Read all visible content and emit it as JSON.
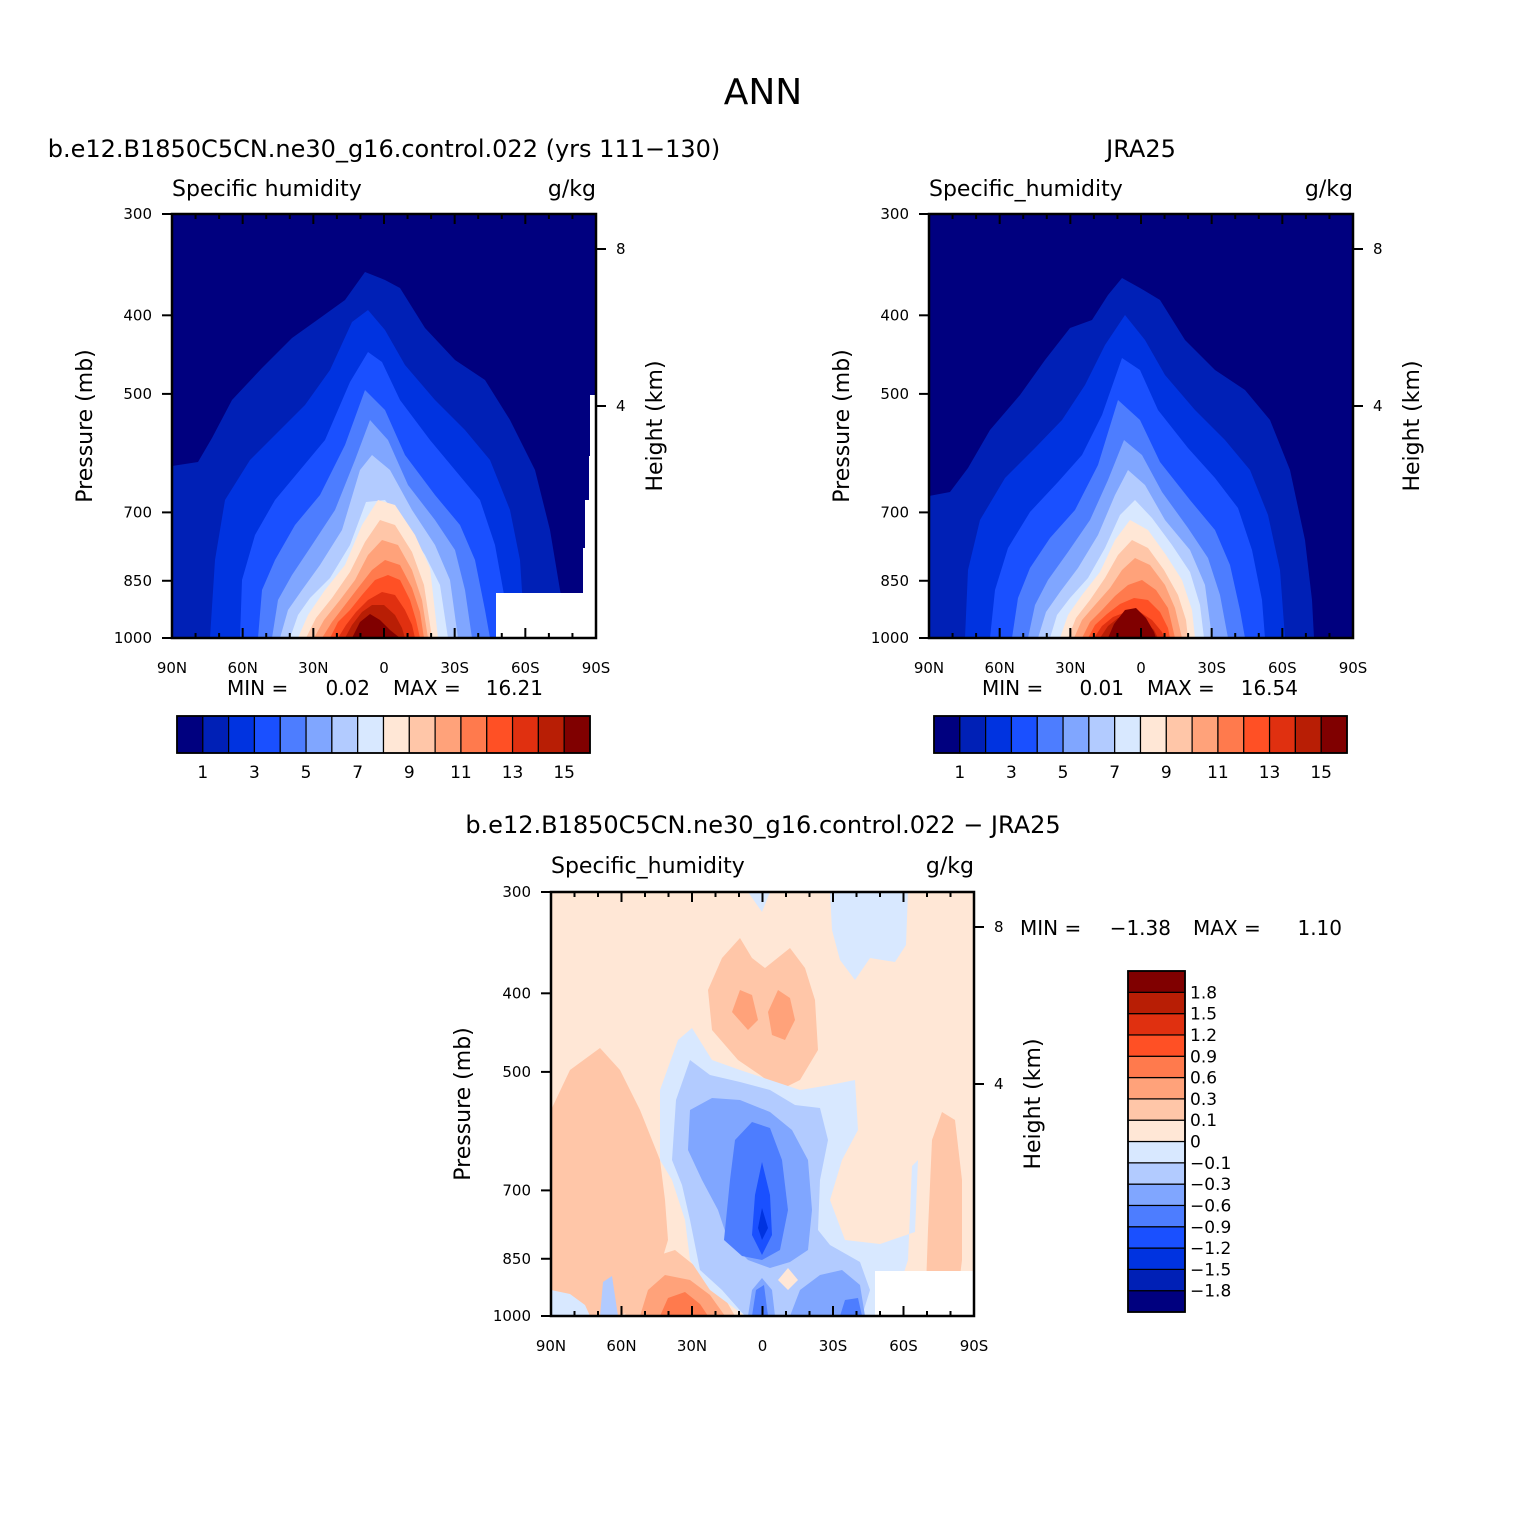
{
  "figure": {
    "title": "ANN"
  },
  "chart_data": [
    {
      "type": "heatmap",
      "title": "b.e12.B1850C5CN.ne30_g16.control.022 (yrs 111-130)",
      "left_string": "Specific humidity",
      "right_string": "g/kg",
      "ylabel": "Pressure (mb)",
      "ylabel_right": "Height (km)",
      "xticks": [
        "90N",
        "60N",
        "30N",
        "0",
        "30S",
        "60S",
        "90S"
      ],
      "xtick_values": [
        90,
        60,
        30,
        0,
        -30,
        -60,
        -90
      ],
      "yticks": [
        "300",
        "400",
        "500",
        "700",
        "850",
        "1000"
      ],
      "ytick_values": [
        300,
        400,
        500,
        700,
        850,
        1000
      ],
      "yticks_right": [
        "8",
        "4"
      ],
      "ylim": [
        1000,
        300
      ],
      "xlim": [
        90,
        -90
      ],
      "min_label": "MIN =",
      "min_value": "0.02",
      "max_label": "MAX =",
      "max_value": "16.21",
      "colorbar": {
        "orientation": "horizontal",
        "levels": [
          1,
          2,
          3,
          4,
          5,
          6,
          7,
          8,
          9,
          10,
          11,
          12,
          13,
          14,
          15
        ],
        "tick_labels": [
          "1",
          "3",
          "5",
          "7",
          "9",
          "11",
          "13",
          "15"
        ],
        "colors": [
          "#00007f",
          "#0020b6",
          "#0033e0",
          "#1a50ff",
          "#4d7dff",
          "#80a6ff",
          "#b2cbff",
          "#d8e8ff",
          "#ffe7d6",
          "#ffc6a8",
          "#ffa27a",
          "#ff7a4d",
          "#ff5025",
          "#e03010",
          "#b81e05",
          "#800000"
        ]
      }
    },
    {
      "type": "heatmap",
      "title": "JRA25",
      "left_string": "Specific_humidity",
      "right_string": "g/kg",
      "ylabel": "Pressure (mb)",
      "ylabel_right": "Height (km)",
      "xticks": [
        "90N",
        "60N",
        "30N",
        "0",
        "30S",
        "60S",
        "90S"
      ],
      "xtick_values": [
        90,
        60,
        30,
        0,
        -30,
        -60,
        -90
      ],
      "yticks": [
        "300",
        "400",
        "500",
        "700",
        "850",
        "1000"
      ],
      "ytick_values": [
        300,
        400,
        500,
        700,
        850,
        1000
      ],
      "yticks_right": [
        "8",
        "4"
      ],
      "ylim": [
        1000,
        300
      ],
      "xlim": [
        90,
        -90
      ],
      "min_label": "MIN =",
      "min_value": "0.01",
      "max_label": "MAX =",
      "max_value": "16.54",
      "colorbar": {
        "orientation": "horizontal",
        "levels": [
          1,
          2,
          3,
          4,
          5,
          6,
          7,
          8,
          9,
          10,
          11,
          12,
          13,
          14,
          15
        ],
        "tick_labels": [
          "1",
          "3",
          "5",
          "7",
          "9",
          "11",
          "13",
          "15"
        ],
        "colors": [
          "#00007f",
          "#0020b6",
          "#0033e0",
          "#1a50ff",
          "#4d7dff",
          "#80a6ff",
          "#b2cbff",
          "#d8e8ff",
          "#ffe7d6",
          "#ffc6a8",
          "#ffa27a",
          "#ff7a4d",
          "#ff5025",
          "#e03010",
          "#b81e05",
          "#800000"
        ]
      }
    },
    {
      "type": "heatmap",
      "title": "b.e12.B1850C5CN.ne30_g16.control.022 - JRA25",
      "left_string": "Specific_humidity",
      "right_string": "g/kg",
      "ylabel": "Pressure (mb)",
      "ylabel_right": "Height (km)",
      "xticks": [
        "90N",
        "60N",
        "30N",
        "0",
        "30S",
        "60S",
        "90S"
      ],
      "xtick_values": [
        90,
        60,
        30,
        0,
        -30,
        -60,
        -90
      ],
      "yticks": [
        "300",
        "400",
        "500",
        "700",
        "850",
        "1000"
      ],
      "ytick_values": [
        300,
        400,
        500,
        700,
        850,
        1000
      ],
      "yticks_right": [
        "8",
        "4"
      ],
      "ylim": [
        1000,
        300
      ],
      "xlim": [
        90,
        -90
      ],
      "min_label": "MIN =",
      "min_value": "-1.38",
      "max_label": "MAX =",
      "max_value": "1.10",
      "colorbar": {
        "orientation": "vertical",
        "levels": [
          -1.8,
          -1.5,
          -1.2,
          -0.9,
          -0.6,
          -0.3,
          -0.1,
          0,
          0.1,
          0.3,
          0.6,
          0.9,
          1.2,
          1.5,
          1.8
        ],
        "tick_labels": [
          "-1.8",
          "-1.5",
          "-1.2",
          "-0.9",
          "-0.6",
          "-0.3",
          "-0.1",
          "0",
          "0.1",
          "0.3",
          "0.6",
          "0.9",
          "1.2",
          "1.5",
          "1.8"
        ],
        "colors": [
          "#00007f",
          "#0020b6",
          "#0033e0",
          "#1a50ff",
          "#4d7dff",
          "#80a6ff",
          "#b2cbff",
          "#d8e8ff",
          "#ffe7d6",
          "#ffc6a8",
          "#ffa27a",
          "#ff7a4d",
          "#ff5025",
          "#e03010",
          "#b81e05",
          "#800000"
        ]
      }
    }
  ]
}
